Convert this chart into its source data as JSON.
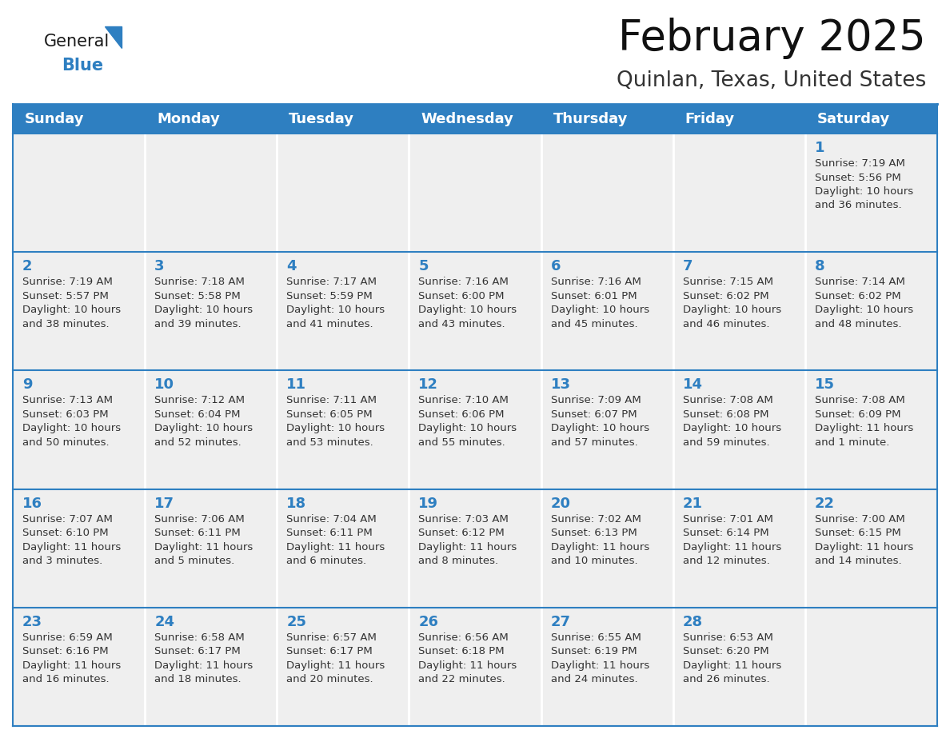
{
  "title": "February 2025",
  "subtitle": "Quinlan, Texas, United States",
  "header_bg": "#2E7FC1",
  "header_text_color": "#FFFFFF",
  "cell_bg": "#EFEFEF",
  "cell_empty_bg": "#EFEFEF",
  "border_color": "#2E7FC1",
  "day_number_color": "#2E7FC1",
  "cell_text_color": "#333333",
  "grid_line_color": "#BBBBBB",
  "days_of_week": [
    "Sunday",
    "Monday",
    "Tuesday",
    "Wednesday",
    "Thursday",
    "Friday",
    "Saturday"
  ],
  "weeks": [
    [
      {
        "day": null,
        "info": null
      },
      {
        "day": null,
        "info": null
      },
      {
        "day": null,
        "info": null
      },
      {
        "day": null,
        "info": null
      },
      {
        "day": null,
        "info": null
      },
      {
        "day": null,
        "info": null
      },
      {
        "day": 1,
        "info": "Sunrise: 7:19 AM\nSunset: 5:56 PM\nDaylight: 10 hours\nand 36 minutes."
      }
    ],
    [
      {
        "day": 2,
        "info": "Sunrise: 7:19 AM\nSunset: 5:57 PM\nDaylight: 10 hours\nand 38 minutes."
      },
      {
        "day": 3,
        "info": "Sunrise: 7:18 AM\nSunset: 5:58 PM\nDaylight: 10 hours\nand 39 minutes."
      },
      {
        "day": 4,
        "info": "Sunrise: 7:17 AM\nSunset: 5:59 PM\nDaylight: 10 hours\nand 41 minutes."
      },
      {
        "day": 5,
        "info": "Sunrise: 7:16 AM\nSunset: 6:00 PM\nDaylight: 10 hours\nand 43 minutes."
      },
      {
        "day": 6,
        "info": "Sunrise: 7:16 AM\nSunset: 6:01 PM\nDaylight: 10 hours\nand 45 minutes."
      },
      {
        "day": 7,
        "info": "Sunrise: 7:15 AM\nSunset: 6:02 PM\nDaylight: 10 hours\nand 46 minutes."
      },
      {
        "day": 8,
        "info": "Sunrise: 7:14 AM\nSunset: 6:02 PM\nDaylight: 10 hours\nand 48 minutes."
      }
    ],
    [
      {
        "day": 9,
        "info": "Sunrise: 7:13 AM\nSunset: 6:03 PM\nDaylight: 10 hours\nand 50 minutes."
      },
      {
        "day": 10,
        "info": "Sunrise: 7:12 AM\nSunset: 6:04 PM\nDaylight: 10 hours\nand 52 minutes."
      },
      {
        "day": 11,
        "info": "Sunrise: 7:11 AM\nSunset: 6:05 PM\nDaylight: 10 hours\nand 53 minutes."
      },
      {
        "day": 12,
        "info": "Sunrise: 7:10 AM\nSunset: 6:06 PM\nDaylight: 10 hours\nand 55 minutes."
      },
      {
        "day": 13,
        "info": "Sunrise: 7:09 AM\nSunset: 6:07 PM\nDaylight: 10 hours\nand 57 minutes."
      },
      {
        "day": 14,
        "info": "Sunrise: 7:08 AM\nSunset: 6:08 PM\nDaylight: 10 hours\nand 59 minutes."
      },
      {
        "day": 15,
        "info": "Sunrise: 7:08 AM\nSunset: 6:09 PM\nDaylight: 11 hours\nand 1 minute."
      }
    ],
    [
      {
        "day": 16,
        "info": "Sunrise: 7:07 AM\nSunset: 6:10 PM\nDaylight: 11 hours\nand 3 minutes."
      },
      {
        "day": 17,
        "info": "Sunrise: 7:06 AM\nSunset: 6:11 PM\nDaylight: 11 hours\nand 5 minutes."
      },
      {
        "day": 18,
        "info": "Sunrise: 7:04 AM\nSunset: 6:11 PM\nDaylight: 11 hours\nand 6 minutes."
      },
      {
        "day": 19,
        "info": "Sunrise: 7:03 AM\nSunset: 6:12 PM\nDaylight: 11 hours\nand 8 minutes."
      },
      {
        "day": 20,
        "info": "Sunrise: 7:02 AM\nSunset: 6:13 PM\nDaylight: 11 hours\nand 10 minutes."
      },
      {
        "day": 21,
        "info": "Sunrise: 7:01 AM\nSunset: 6:14 PM\nDaylight: 11 hours\nand 12 minutes."
      },
      {
        "day": 22,
        "info": "Sunrise: 7:00 AM\nSunset: 6:15 PM\nDaylight: 11 hours\nand 14 minutes."
      }
    ],
    [
      {
        "day": 23,
        "info": "Sunrise: 6:59 AM\nSunset: 6:16 PM\nDaylight: 11 hours\nand 16 minutes."
      },
      {
        "day": 24,
        "info": "Sunrise: 6:58 AM\nSunset: 6:17 PM\nDaylight: 11 hours\nand 18 minutes."
      },
      {
        "day": 25,
        "info": "Sunrise: 6:57 AM\nSunset: 6:17 PM\nDaylight: 11 hours\nand 20 minutes."
      },
      {
        "day": 26,
        "info": "Sunrise: 6:56 AM\nSunset: 6:18 PM\nDaylight: 11 hours\nand 22 minutes."
      },
      {
        "day": 27,
        "info": "Sunrise: 6:55 AM\nSunset: 6:19 PM\nDaylight: 11 hours\nand 24 minutes."
      },
      {
        "day": 28,
        "info": "Sunrise: 6:53 AM\nSunset: 6:20 PM\nDaylight: 11 hours\nand 26 minutes."
      },
      {
        "day": null,
        "info": null
      }
    ]
  ],
  "logo_general_color": "#1a1a1a",
  "logo_blue_color": "#2E7FC1",
  "title_fontsize": 38,
  "subtitle_fontsize": 19,
  "header_fontsize": 13,
  "day_num_fontsize": 13,
  "cell_text_fontsize": 9.5
}
